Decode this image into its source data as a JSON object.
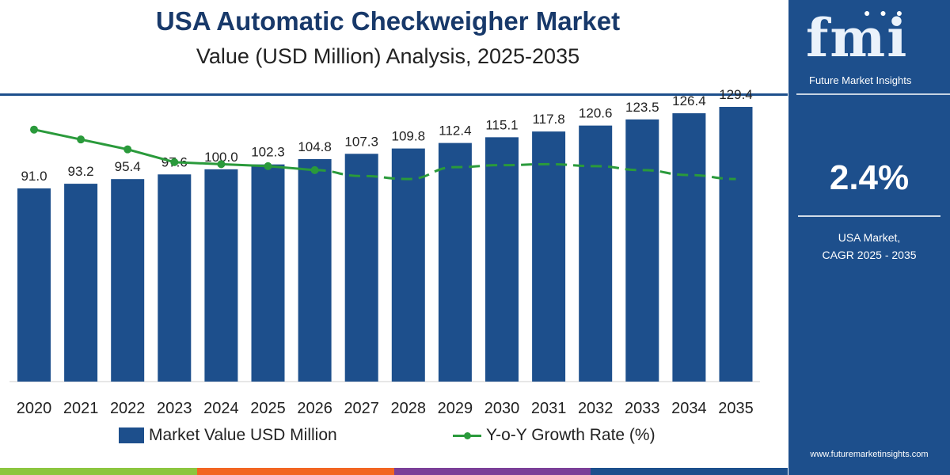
{
  "title": "USA Automatic Checkweigher Market",
  "subtitle": "Value (USD Million) Analysis, 2025-2035",
  "colors": {
    "bar": "#1d4f8c",
    "growth_line": "#2a9a3b",
    "panel_bg": "#1d4f8c",
    "title": "#18396a",
    "stripe": [
      "#8cc63f",
      "#f26522",
      "#7b3f98",
      "#1d4f8c"
    ]
  },
  "legend": {
    "bar_label": "Market Value USD Million",
    "line_label": "Y-o-Y Growth Rate (%)"
  },
  "side_panel": {
    "brand": "fmi",
    "brand_name": "Future Market Insights",
    "cagr_value": "2.4%",
    "cagr_label_line1": "USA Market,",
    "cagr_label_line2": "CAGR 2025 - 2035",
    "website": "www.futuremarketinsights.com"
  },
  "chart_data": {
    "type": "bar",
    "categories": [
      "2020",
      "2021",
      "2022",
      "2023",
      "2024",
      "2025",
      "2026",
      "2027",
      "2028",
      "2029",
      "2030",
      "2031",
      "2032",
      "2033",
      "2034",
      "2035"
    ],
    "series": [
      {
        "name": "Market Value USD Million",
        "type": "bar",
        "values": [
          91.0,
          93.2,
          95.4,
          97.6,
          100.0,
          102.3,
          104.8,
          107.3,
          109.8,
          112.4,
          115.1,
          117.8,
          120.6,
          123.5,
          126.4,
          129.4
        ],
        "labels": [
          "91.0",
          "93.2",
          "95.4",
          "97.6",
          "100.0",
          "102.3",
          "104.8",
          "107.3",
          "109.8",
          "112.4",
          "115.1",
          "117.8",
          "120.6",
          "123.5",
          "126.4",
          "129.4"
        ]
      },
      {
        "name": "Y-o-Y Growth Rate (%)",
        "type": "line",
        "values": [
          2.55,
          2.45,
          2.35,
          2.22,
          2.2,
          2.18,
          2.14,
          2.08,
          2.05,
          2.17,
          2.19,
          2.2,
          2.18,
          2.14,
          2.09,
          2.05
        ],
        "marker_until_index": 6,
        "dashed_from_index": 6
      }
    ],
    "ylim": [
      0,
      135
    ],
    "growth_ylim": [
      0,
      2.9
    ],
    "grid": false,
    "legend_position": "bottom"
  }
}
